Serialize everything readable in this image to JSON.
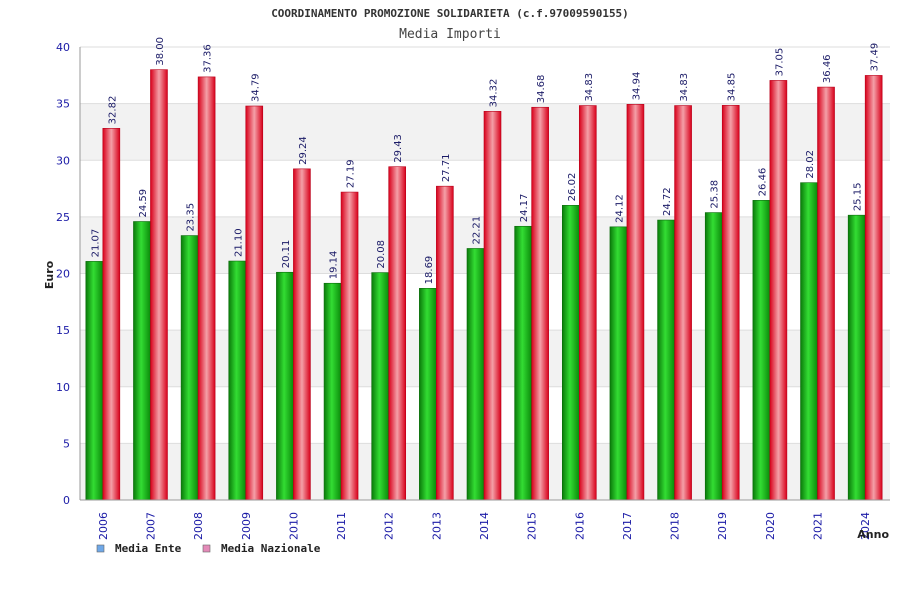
{
  "chart_data": {
    "type": "bar",
    "title": "COORDINAMENTO PROMOZIONE SOLIDARIETA (c.f.97009590155)",
    "subtitle": "Media Importi",
    "xlabel": "Anno",
    "ylabel": "Euro",
    "ylim": [
      0,
      40
    ],
    "yticks": [
      0,
      5,
      10,
      15,
      20,
      25,
      30,
      35,
      40
    ],
    "grid": true,
    "legend_position": "bottom-left",
    "categories": [
      "2006",
      "2007",
      "2008",
      "2009",
      "2010",
      "2011",
      "2012",
      "2013",
      "2014",
      "2015",
      "2016",
      "2017",
      "2018",
      "2019",
      "2020",
      "2021",
      "2024"
    ],
    "series": [
      {
        "name": "Media Ente",
        "color": "#22aa22",
        "legend_color": "#6fa8e8",
        "values": [
          21.07,
          24.59,
          23.35,
          21.1,
          20.11,
          19.14,
          20.08,
          18.69,
          22.21,
          24.17,
          26.02,
          24.12,
          24.72,
          25.38,
          26.46,
          28.02,
          25.15
        ],
        "labels": [
          "21.07",
          "24.59",
          "23.35",
          "21.10",
          "20.11",
          "19.14",
          "20.08",
          "18.69",
          "22.21",
          "24.17",
          "26.02",
          "24.12",
          "24.72",
          "25.38",
          "26.46",
          "28.02",
          "25.15"
        ]
      },
      {
        "name": "Media Nazionale",
        "color": "#ee2233",
        "legend_color": "#e48ab8",
        "values": [
          32.82,
          38.0,
          37.36,
          34.79,
          29.24,
          27.19,
          29.43,
          27.71,
          34.32,
          34.68,
          34.83,
          34.94,
          34.83,
          34.85,
          37.05,
          36.46,
          37.49
        ],
        "labels": [
          "32.82",
          "38.00",
          "37.36",
          "34.79",
          "29.24",
          "27.19",
          "29.43",
          "27.71",
          "34.32",
          "34.68",
          "34.83",
          "34.94",
          "34.83",
          "34.85",
          "37.05",
          "36.46",
          "37.49"
        ]
      }
    ]
  }
}
